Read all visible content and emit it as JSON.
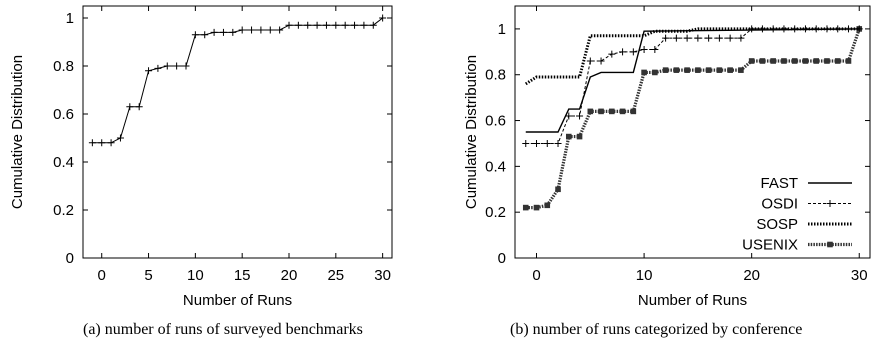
{
  "chart_data": [
    {
      "type": "line",
      "caption": "(a)  number of runs of surveyed benchmarks",
      "xlabel": "Number of Runs",
      "ylabel": "Cumulative Distribution",
      "xlim": [
        -2,
        31
      ],
      "ylim": [
        0,
        1.05
      ],
      "xticks": [
        "0",
        "5",
        "10",
        "15",
        "20",
        "25",
        "30"
      ],
      "yticks": [
        "0",
        "0.2",
        "0.4",
        "0.6",
        "0.8",
        "1"
      ],
      "grid": false,
      "series": [
        {
          "style": "solid-plus-markers",
          "color": "#000000",
          "x": [
            -1,
            0,
            1,
            2,
            3,
            4,
            5,
            6,
            7,
            8,
            9,
            10,
            11,
            12,
            13,
            14,
            15,
            16,
            17,
            18,
            19,
            20,
            21,
            22,
            23,
            24,
            25,
            26,
            27,
            28,
            29,
            30
          ],
          "y": [
            0.48,
            0.48,
            0.48,
            0.5,
            0.63,
            0.63,
            0.78,
            0.79,
            0.8,
            0.8,
            0.8,
            0.93,
            0.93,
            0.94,
            0.94,
            0.94,
            0.95,
            0.95,
            0.95,
            0.95,
            0.95,
            0.97,
            0.97,
            0.97,
            0.97,
            0.97,
            0.97,
            0.97,
            0.97,
            0.97,
            0.97,
            1.0
          ]
        }
      ]
    },
    {
      "type": "line",
      "caption": "(b)  number of runs categorized by conference",
      "xlabel": "Number of Runs",
      "ylabel": "Cumulative Distribution",
      "xlim": [
        -2,
        31
      ],
      "ylim": [
        0,
        1.1
      ],
      "xticks": [
        "0",
        "10",
        "20",
        "30"
      ],
      "yticks": [
        "0",
        "0.2",
        "0.4",
        "0.6",
        "0.8",
        "1"
      ],
      "grid": false,
      "legend": "bottom-right",
      "series": [
        {
          "name": "FAST",
          "style": "solid",
          "color": "#000000",
          "x": [
            -1,
            2,
            3,
            4,
            5,
            6,
            9,
            10,
            30
          ],
          "y": [
            0.55,
            0.55,
            0.65,
            0.65,
            0.79,
            0.81,
            0.81,
            0.99,
            1.0
          ]
        },
        {
          "name": "OSDI",
          "style": "dashed-plus-markers",
          "color": "#000000",
          "x": [
            -1,
            0,
            1,
            2,
            3,
            4,
            5,
            6,
            7,
            8,
            9,
            10,
            11,
            12,
            13,
            14,
            15,
            16,
            17,
            18,
            19,
            20,
            21,
            22,
            23,
            24,
            25,
            26,
            27,
            28,
            29,
            30
          ],
          "y": [
            0.5,
            0.5,
            0.5,
            0.5,
            0.62,
            0.62,
            0.86,
            0.86,
            0.89,
            0.9,
            0.9,
            0.91,
            0.91,
            0.96,
            0.96,
            0.96,
            0.96,
            0.96,
            0.96,
            0.96,
            0.96,
            1.0,
            1.0,
            1.0,
            1.0,
            1.0,
            1.0,
            1.0,
            1.0,
            1.0,
            1.0,
            1.0
          ]
        },
        {
          "name": "SOSP",
          "style": "dotted-thick",
          "color": "#000000",
          "x": [
            -1,
            0,
            3,
            4,
            5,
            10,
            11,
            14,
            15,
            30
          ],
          "y": [
            0.76,
            0.79,
            0.79,
            0.79,
            0.97,
            0.97,
            0.99,
            0.99,
            1.0,
            1.0
          ]
        },
        {
          "name": "USENIX",
          "style": "thick-square-markers",
          "color": "#333333",
          "x": [
            -1,
            0,
            1,
            2,
            3,
            4,
            5,
            6,
            7,
            8,
            9,
            10,
            11,
            12,
            13,
            14,
            15,
            16,
            17,
            18,
            19,
            20,
            21,
            22,
            23,
            24,
            25,
            26,
            27,
            28,
            29,
            30
          ],
          "y": [
            0.22,
            0.22,
            0.23,
            0.3,
            0.53,
            0.53,
            0.64,
            0.64,
            0.64,
            0.64,
            0.64,
            0.81,
            0.81,
            0.82,
            0.82,
            0.82,
            0.82,
            0.82,
            0.82,
            0.82,
            0.82,
            0.86,
            0.86,
            0.86,
            0.86,
            0.86,
            0.86,
            0.86,
            0.86,
            0.86,
            0.86,
            1.0
          ]
        }
      ]
    }
  ]
}
